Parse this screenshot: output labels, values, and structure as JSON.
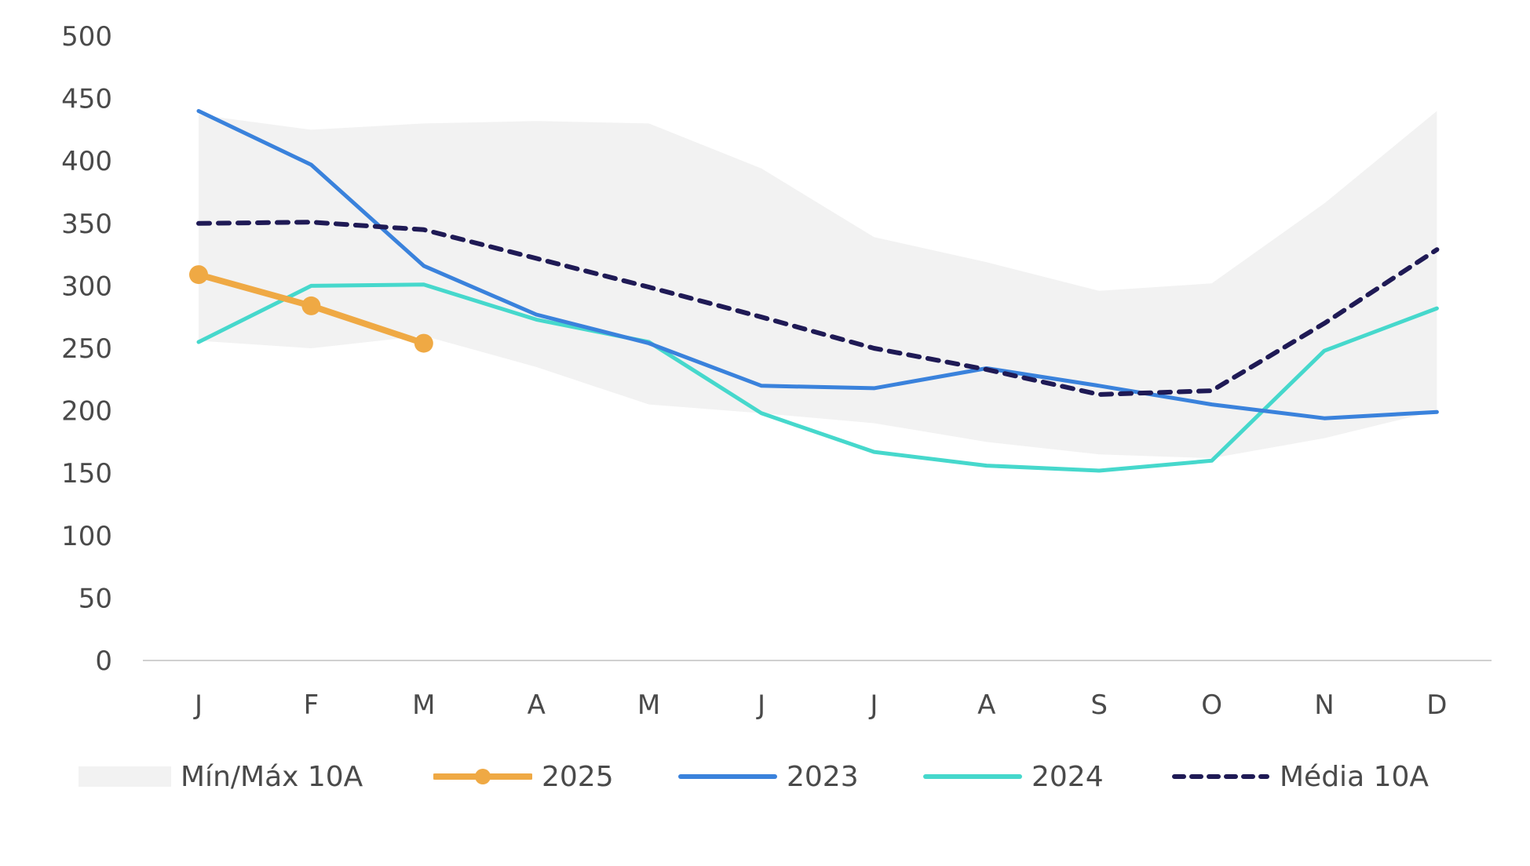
{
  "chart_data": {
    "type": "line",
    "categories": [
      "J",
      "F",
      "M",
      "A",
      "M",
      "J",
      "J",
      "A",
      "S",
      "O",
      "N",
      "D"
    ],
    "ylim": [
      0,
      500
    ],
    "yticks": [
      0,
      50,
      100,
      150,
      200,
      250,
      300,
      350,
      400,
      450,
      500
    ],
    "band": {
      "name": "Mín/Máx 10A",
      "color": "#f2f2f2",
      "min": [
        256,
        250,
        260,
        235,
        205,
        198,
        190,
        175,
        165,
        162,
        178,
        200
      ],
      "max": [
        437,
        425,
        430,
        432,
        430,
        394,
        339,
        319,
        296,
        302,
        366,
        440
      ]
    },
    "series": [
      {
        "name": "2025",
        "color": "#efa944",
        "style": "solid-markers",
        "values": [
          309,
          284,
          254,
          null,
          null,
          null,
          null,
          null,
          null,
          null,
          null,
          null
        ]
      },
      {
        "name": "2023",
        "color": "#3a82dc",
        "style": "solid",
        "values": [
          440,
          397,
          316,
          277,
          254,
          220,
          218,
          234,
          220,
          205,
          194,
          199
        ]
      },
      {
        "name": "2024",
        "color": "#46d8cc",
        "style": "solid",
        "values": [
          255,
          300,
          301,
          273,
          255,
          198,
          167,
          156,
          152,
          160,
          248,
          282
        ]
      },
      {
        "name": "Média 10A",
        "color": "#1f1a55",
        "style": "dashed",
        "values": [
          350,
          351,
          345,
          322,
          299,
          275,
          250,
          233,
          213,
          216,
          270,
          329
        ]
      }
    ],
    "grid": false,
    "legend_position": "bottom"
  }
}
